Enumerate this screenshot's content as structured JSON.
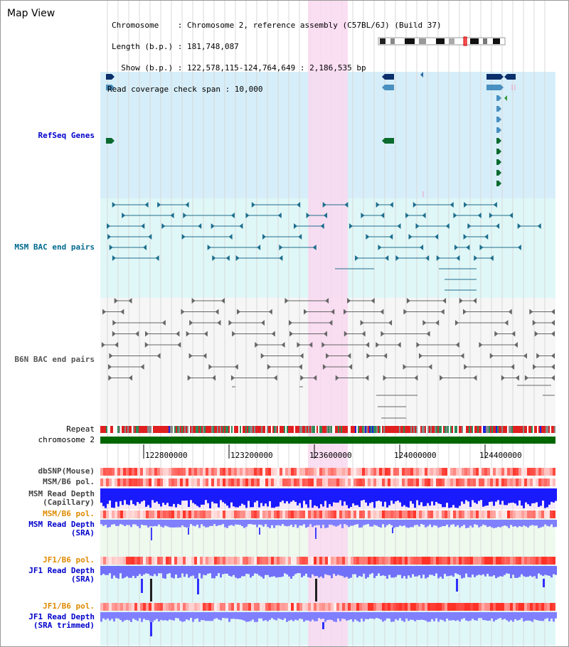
{
  "title": "Map View",
  "info": {
    "line1": "Chromosome    : Chromosome 2, reference assembly (C57BL/6J) (Build 37)",
    "line2": "Length (b.p.) : 181,748,087",
    "line3": "  Show (b.p.) : 122,578,115-124,764,649 : 2,186,535 bp",
    "line4": "Read coverage check span : 10,000"
  },
  "tracks": {
    "refseq": "RefSeq Genes",
    "msm_bac": "MSM BAC end pairs",
    "b6n_bac": "B6N BAC end pairs",
    "repeat": "Repeat",
    "chromosome": "chromosome 2",
    "dbsnp": "dbSNP(Mouse)",
    "msm_b6_pol_1": "MSM/B6 pol.",
    "msm_depth_cap_1": "MSM Read Depth",
    "msm_depth_cap_2": "(Capillary)",
    "msm_b6_pol_2": "MSM/B6 pol.",
    "msm_depth_sra_1": "MSM Read Depth",
    "msm_depth_sra_2": "(SRA)",
    "jf1_b6_pol_1": "JF1/B6 pol.",
    "jf1_depth_sra_1": "JF1 Read Depth",
    "jf1_depth_sra_2": "(SRA)",
    "jf1_b6_pol_2": "JF1/B6 pol.",
    "jf1_depth_trim_1": "JF1 Read Depth",
    "jf1_depth_trim_2": "(SRA trimmed)"
  },
  "axis": {
    "ticks": [
      "122800000",
      "123200000",
      "123600000",
      "124000000",
      "124400000"
    ]
  },
  "colors": {
    "refseq_bg": "#d6eef9",
    "msm_bg": "#e0f7f7",
    "b6n_bg": "#f6f6f6",
    "highlight": "#f9d8f0",
    "chrom_bar": "#006600",
    "refseq_label": "#0000cc",
    "msm_label": "#006a8e",
    "b6n_label": "#555555",
    "pol_orange_label": "#e08a00",
    "depth_blue": "#1a1aff",
    "depth_light": "#8080ff"
  }
}
